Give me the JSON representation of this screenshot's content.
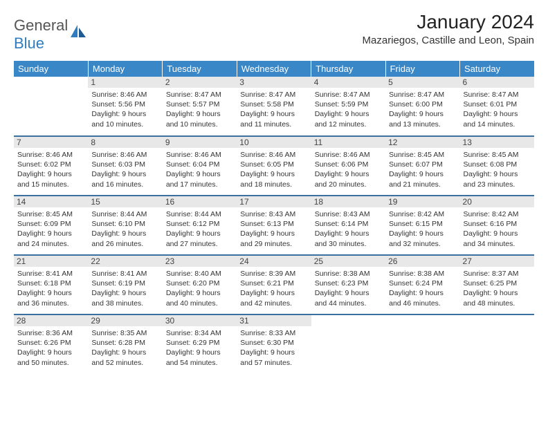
{
  "brand": {
    "part1": "General",
    "part2": "Blue"
  },
  "title": "January 2024",
  "location": "Mazariegos, Castille and Leon, Spain",
  "headers": [
    "Sunday",
    "Monday",
    "Tuesday",
    "Wednesday",
    "Thursday",
    "Friday",
    "Saturday"
  ],
  "colors": {
    "header_bg": "#3a87c8",
    "header_text": "#ffffff",
    "row_border": "#3a6fa0",
    "daynum_bg": "#e8e8e8",
    "logo_gray": "#555555",
    "logo_blue": "#2f7cc0"
  },
  "weeks": [
    [
      null,
      {
        "n": "1",
        "sr": "8:46 AM",
        "ss": "5:56 PM",
        "dl": "9 hours and 10 minutes."
      },
      {
        "n": "2",
        "sr": "8:47 AM",
        "ss": "5:57 PM",
        "dl": "9 hours and 10 minutes."
      },
      {
        "n": "3",
        "sr": "8:47 AM",
        "ss": "5:58 PM",
        "dl": "9 hours and 11 minutes."
      },
      {
        "n": "4",
        "sr": "8:47 AM",
        "ss": "5:59 PM",
        "dl": "9 hours and 12 minutes."
      },
      {
        "n": "5",
        "sr": "8:47 AM",
        "ss": "6:00 PM",
        "dl": "9 hours and 13 minutes."
      },
      {
        "n": "6",
        "sr": "8:47 AM",
        "ss": "6:01 PM",
        "dl": "9 hours and 14 minutes."
      }
    ],
    [
      {
        "n": "7",
        "sr": "8:46 AM",
        "ss": "6:02 PM",
        "dl": "9 hours and 15 minutes."
      },
      {
        "n": "8",
        "sr": "8:46 AM",
        "ss": "6:03 PM",
        "dl": "9 hours and 16 minutes."
      },
      {
        "n": "9",
        "sr": "8:46 AM",
        "ss": "6:04 PM",
        "dl": "9 hours and 17 minutes."
      },
      {
        "n": "10",
        "sr": "8:46 AM",
        "ss": "6:05 PM",
        "dl": "9 hours and 18 minutes."
      },
      {
        "n": "11",
        "sr": "8:46 AM",
        "ss": "6:06 PM",
        "dl": "9 hours and 20 minutes."
      },
      {
        "n": "12",
        "sr": "8:45 AM",
        "ss": "6:07 PM",
        "dl": "9 hours and 21 minutes."
      },
      {
        "n": "13",
        "sr": "8:45 AM",
        "ss": "6:08 PM",
        "dl": "9 hours and 23 minutes."
      }
    ],
    [
      {
        "n": "14",
        "sr": "8:45 AM",
        "ss": "6:09 PM",
        "dl": "9 hours and 24 minutes."
      },
      {
        "n": "15",
        "sr": "8:44 AM",
        "ss": "6:10 PM",
        "dl": "9 hours and 26 minutes."
      },
      {
        "n": "16",
        "sr": "8:44 AM",
        "ss": "6:12 PM",
        "dl": "9 hours and 27 minutes."
      },
      {
        "n": "17",
        "sr": "8:43 AM",
        "ss": "6:13 PM",
        "dl": "9 hours and 29 minutes."
      },
      {
        "n": "18",
        "sr": "8:43 AM",
        "ss": "6:14 PM",
        "dl": "9 hours and 30 minutes."
      },
      {
        "n": "19",
        "sr": "8:42 AM",
        "ss": "6:15 PM",
        "dl": "9 hours and 32 minutes."
      },
      {
        "n": "20",
        "sr": "8:42 AM",
        "ss": "6:16 PM",
        "dl": "9 hours and 34 minutes."
      }
    ],
    [
      {
        "n": "21",
        "sr": "8:41 AM",
        "ss": "6:18 PM",
        "dl": "9 hours and 36 minutes."
      },
      {
        "n": "22",
        "sr": "8:41 AM",
        "ss": "6:19 PM",
        "dl": "9 hours and 38 minutes."
      },
      {
        "n": "23",
        "sr": "8:40 AM",
        "ss": "6:20 PM",
        "dl": "9 hours and 40 minutes."
      },
      {
        "n": "24",
        "sr": "8:39 AM",
        "ss": "6:21 PM",
        "dl": "9 hours and 42 minutes."
      },
      {
        "n": "25",
        "sr": "8:38 AM",
        "ss": "6:23 PM",
        "dl": "9 hours and 44 minutes."
      },
      {
        "n": "26",
        "sr": "8:38 AM",
        "ss": "6:24 PM",
        "dl": "9 hours and 46 minutes."
      },
      {
        "n": "27",
        "sr": "8:37 AM",
        "ss": "6:25 PM",
        "dl": "9 hours and 48 minutes."
      }
    ],
    [
      {
        "n": "28",
        "sr": "8:36 AM",
        "ss": "6:26 PM",
        "dl": "9 hours and 50 minutes."
      },
      {
        "n": "29",
        "sr": "8:35 AM",
        "ss": "6:28 PM",
        "dl": "9 hours and 52 minutes."
      },
      {
        "n": "30",
        "sr": "8:34 AM",
        "ss": "6:29 PM",
        "dl": "9 hours and 54 minutes."
      },
      {
        "n": "31",
        "sr": "8:33 AM",
        "ss": "6:30 PM",
        "dl": "9 hours and 57 minutes."
      },
      null,
      null,
      null
    ]
  ],
  "labels": {
    "sunrise": "Sunrise:",
    "sunset": "Sunset:",
    "daylight": "Daylight:"
  }
}
